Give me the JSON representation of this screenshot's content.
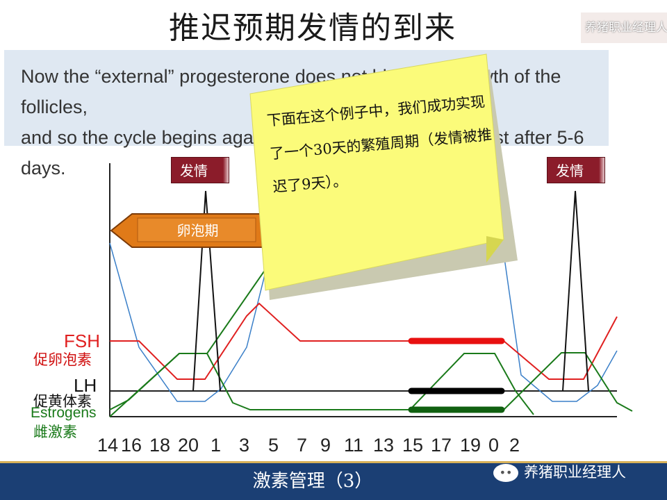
{
  "slide": {
    "title": "推迟预期发情的到来",
    "watermark_top": "养猪职业经理人",
    "info_line1": "Now the “external” progesterone does not block the growth of the follicles,",
    "info_line2": "and so the cycle begins again, with ovulation occurring just after 5-6 days.",
    "sticky_note": "下面在这个例子中，我们成功实现了一个30天的繁殖周期（发情被推迟了9天）。",
    "estrus_label_left": "发情",
    "estrus_label_right": "发情",
    "follicular_phase_label": "卵泡期",
    "footer_title": "激素管理（3）",
    "watermark_bottom": "养猪职业经理人",
    "colors": {
      "fsh": "#e02020",
      "lh": "#111111",
      "estrogen": "#1a7a1a",
      "progesterone": "#3a7fc8",
      "footer": "#1b3f74",
      "sticky": "#fbfb7a",
      "estrus_box": "#8b1c2a",
      "arrow": "#e07a18"
    }
  },
  "legend": {
    "fsh_en": "FSH",
    "fsh_cn": "促卵泡素",
    "lh_en": "LH",
    "lh_cn": "促黄体素",
    "estrogen_en": "Estrogens",
    "estrogen_cn": "雌激素"
  },
  "chart_data": {
    "type": "line",
    "x_tick_labels": [
      "14",
      "16",
      "18",
      "20",
      "1",
      "3",
      "5",
      "7",
      "9",
      "11",
      "13",
      "15",
      "17",
      "19",
      "0",
      "2"
    ],
    "series_drawn": [
      "FSH",
      "LH",
      "Estrogens",
      "Progesterone"
    ]
  },
  "icons": [
    "arrow-left-icon",
    "arrow-right-icon",
    "wechat-icon"
  ]
}
